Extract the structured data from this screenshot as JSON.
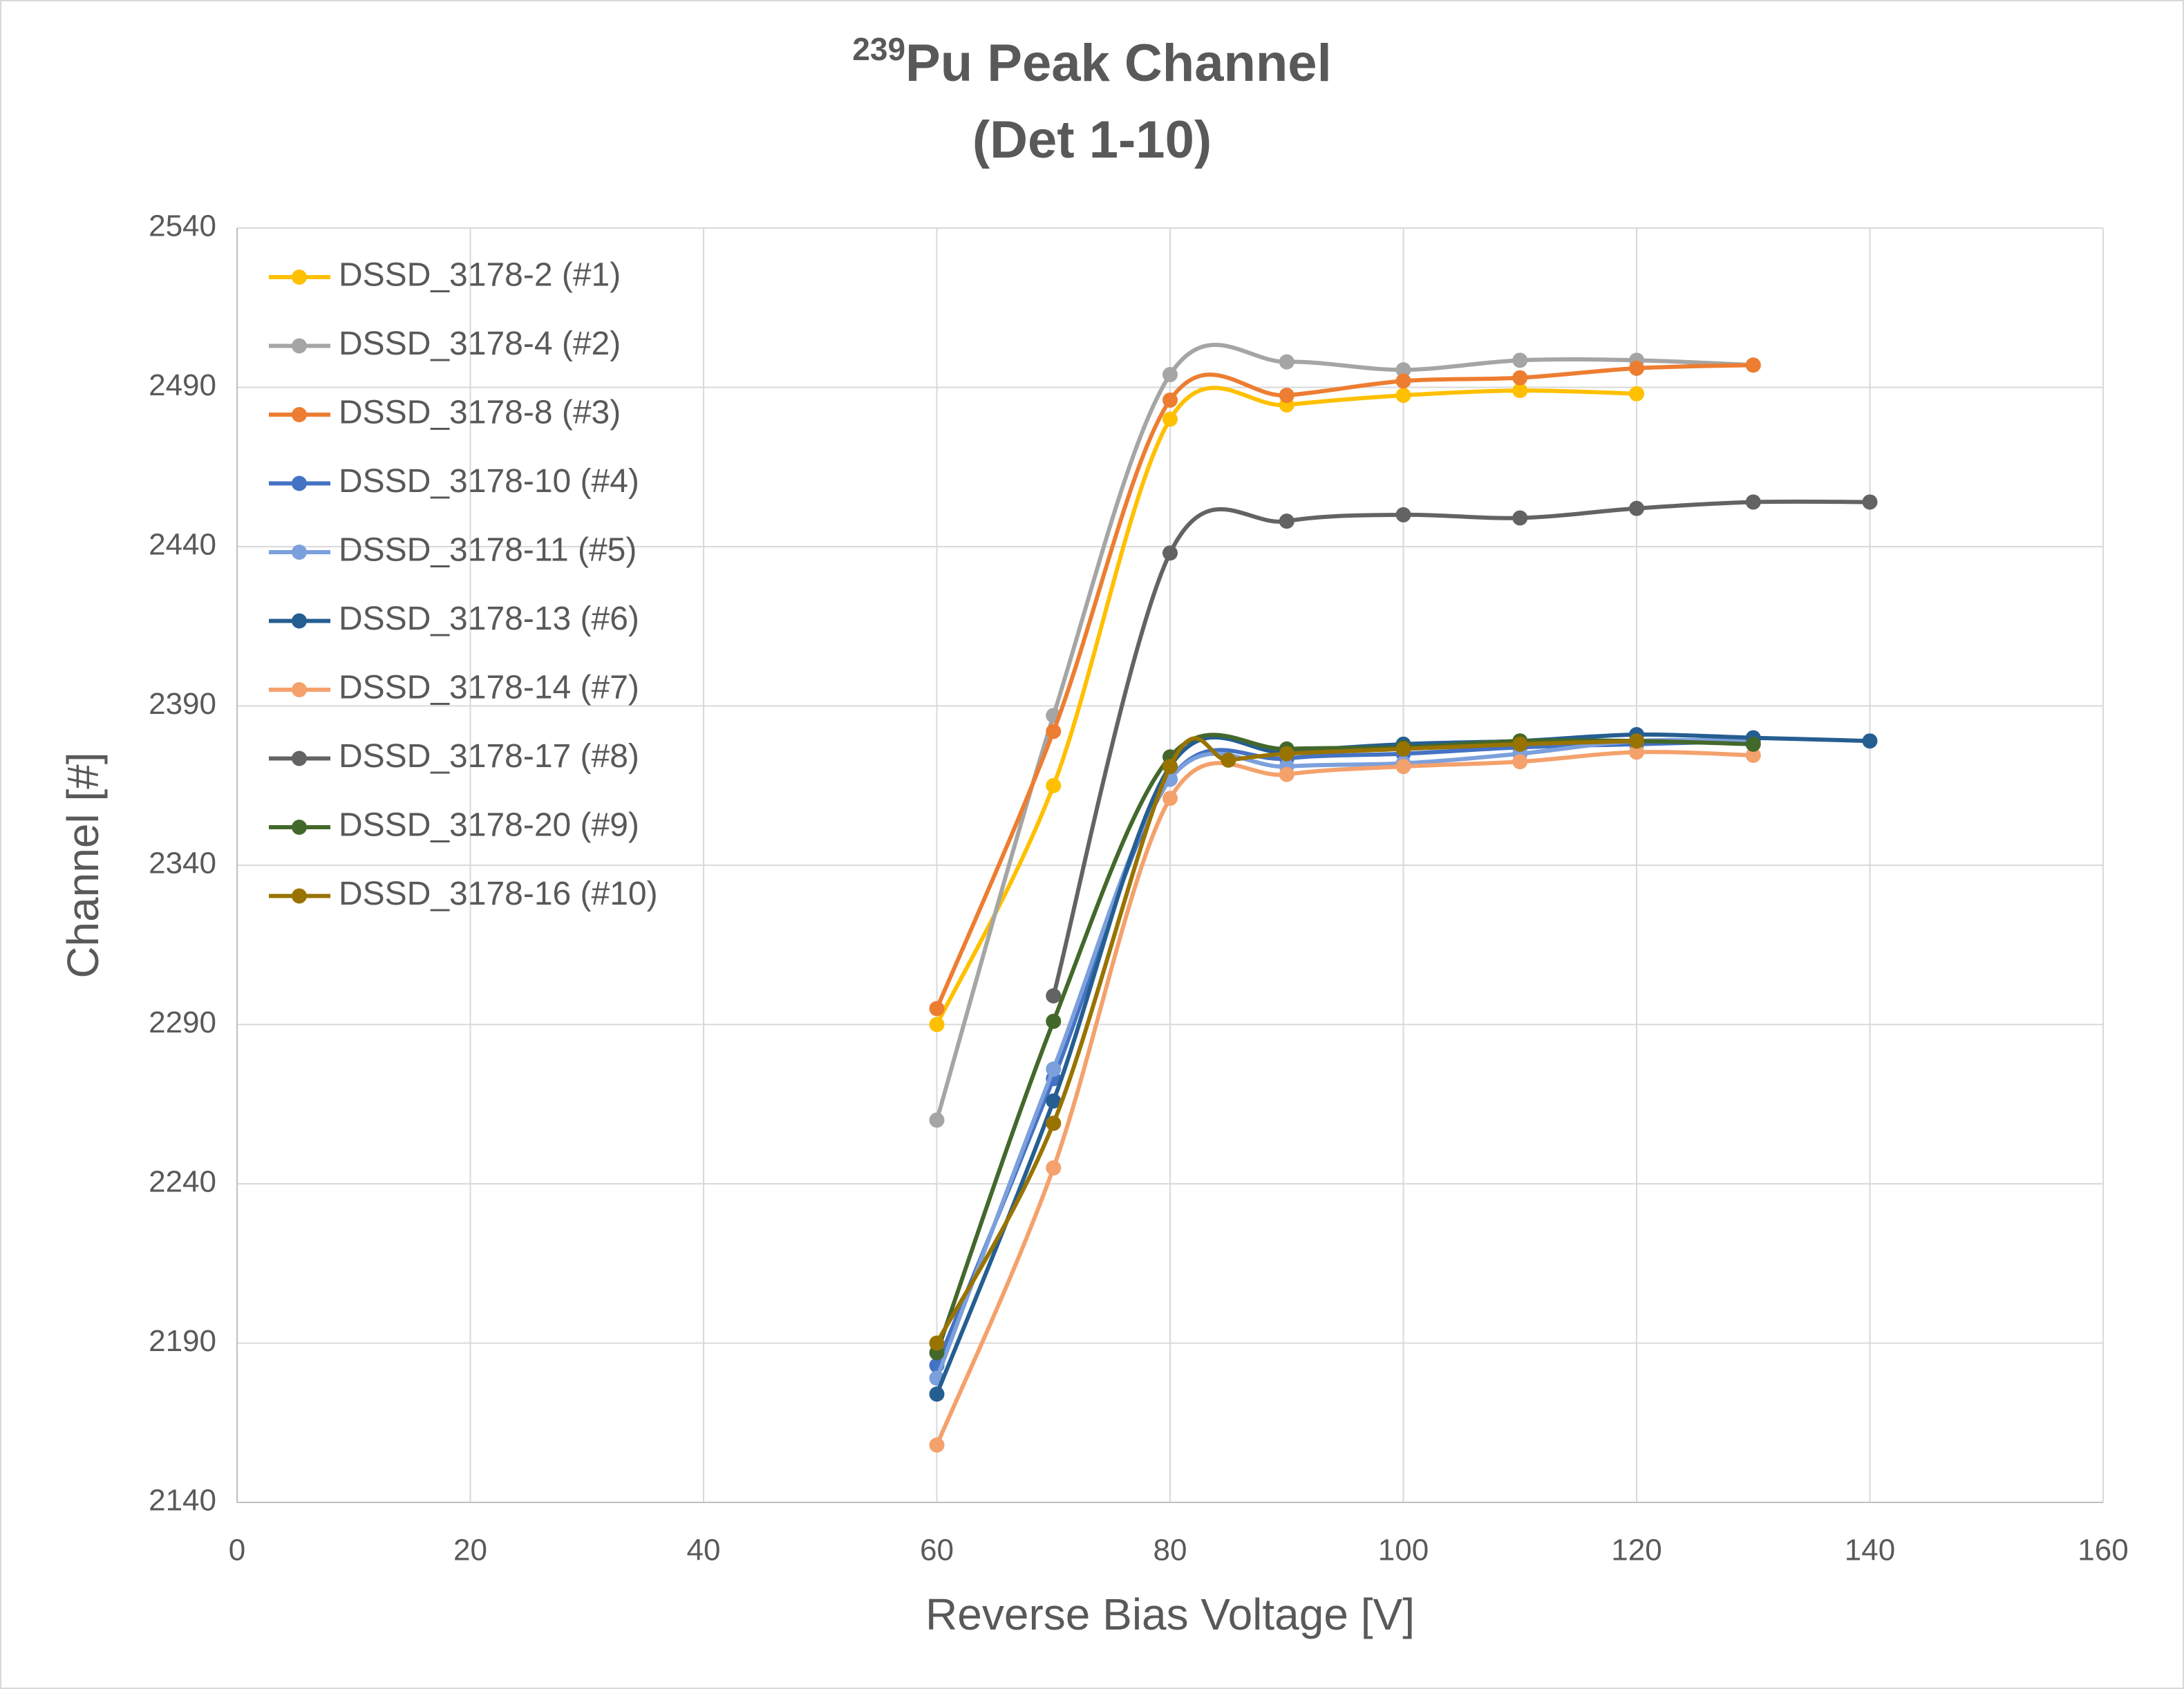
{
  "chart_data": {
    "type": "line",
    "smooth": true,
    "title_superscript": "239",
    "title": "Pu Peak Channel",
    "subtitle": "(Det 1-10)",
    "x_label": "Reverse Bias Voltage [V]",
    "y_label": "Channel [#]",
    "xlim": [
      0,
      160
    ],
    "xticks": [
      0,
      20,
      40,
      60,
      80,
      100,
      120,
      140,
      160
    ],
    "ylim": [
      2140,
      2540
    ],
    "yticks": [
      2140,
      2190,
      2240,
      2290,
      2340,
      2390,
      2440,
      2490,
      2540
    ],
    "grid": true,
    "legend": "top-left",
    "series": [
      {
        "name": "DSSD_3178-2 (#1)",
        "color": "#FFC000",
        "x": [
          60,
          70,
          80,
          90,
          100,
          110,
          120
        ],
        "values": [
          2290,
          2365,
          2480,
          2484.5,
          2487.5,
          2489,
          2488
        ]
      },
      {
        "name": "DSSD_3178-4 (#2)",
        "color": "#A5A5A5",
        "x": [
          60,
          70,
          80,
          90,
          100,
          110,
          120,
          130
        ],
        "values": [
          2260,
          2387,
          2494,
          2498,
          2495.5,
          2498.5,
          2498.5,
          2497
        ]
      },
      {
        "name": "DSSD_3178-8 (#3)",
        "color": "#ED7D31",
        "x": [
          60,
          70,
          80,
          90,
          100,
          110,
          120,
          130
        ],
        "values": [
          2295,
          2382,
          2486,
          2487.5,
          2492,
          2493,
          2496,
          2497
        ]
      },
      {
        "name": "DSSD_3178-10 (#4)",
        "color": "#4472C4",
        "x": [
          60,
          70,
          80,
          90,
          100,
          110,
          120,
          130
        ],
        "values": [
          2183,
          2273,
          2367,
          2373.5,
          2375,
          2377,
          2378,
          2379
        ]
      },
      {
        "name": "DSSD_3178-11 (#5)",
        "color": "#7CA0DC",
        "x": [
          60,
          70,
          80,
          90,
          100,
          110,
          120,
          130
        ],
        "values": [
          2179,
          2276,
          2367,
          2371,
          2372,
          2375,
          2379,
          2379
        ]
      },
      {
        "name": "DSSD_3178-13 (#6)",
        "color": "#255E91",
        "x": [
          60,
          70,
          80,
          90,
          100,
          110,
          120,
          130,
          140
        ],
        "values": [
          2174,
          2266,
          2371,
          2375.5,
          2378,
          2379,
          2381,
          2380,
          2379
        ]
      },
      {
        "name": "DSSD_3178-14 (#7)",
        "color": "#F4A16C",
        "x": [
          60,
          70,
          80,
          90,
          100,
          110,
          120,
          130
        ],
        "values": [
          2158,
          2245,
          2361,
          2368.5,
          2371,
          2372.5,
          2375.5,
          2374.5
        ]
      },
      {
        "name": "DSSD_3178-17 (#8)",
        "color": "#636363",
        "x": [
          70,
          80,
          90,
          100,
          110,
          120,
          130,
          140
        ],
        "values": [
          2299,
          2438,
          2448,
          2450,
          2449,
          2452,
          2454,
          2454
        ]
      },
      {
        "name": "DSSD_3178-20 (#9)",
        "color": "#43682B",
        "x": [
          60,
          70,
          80,
          90,
          100,
          110,
          120,
          130
        ],
        "values": [
          2187,
          2291,
          2374,
          2376.5,
          2377,
          2379,
          2379,
          2378
        ]
      },
      {
        "name": "DSSD_3178-16 (#10)",
        "color": "#997300",
        "x": [
          60,
          70,
          80,
          85,
          90,
          100,
          110,
          120
        ],
        "values": [
          2190,
          2259,
          2371,
          2373,
          2375,
          2376.5,
          2378,
          2379
        ]
      }
    ]
  }
}
